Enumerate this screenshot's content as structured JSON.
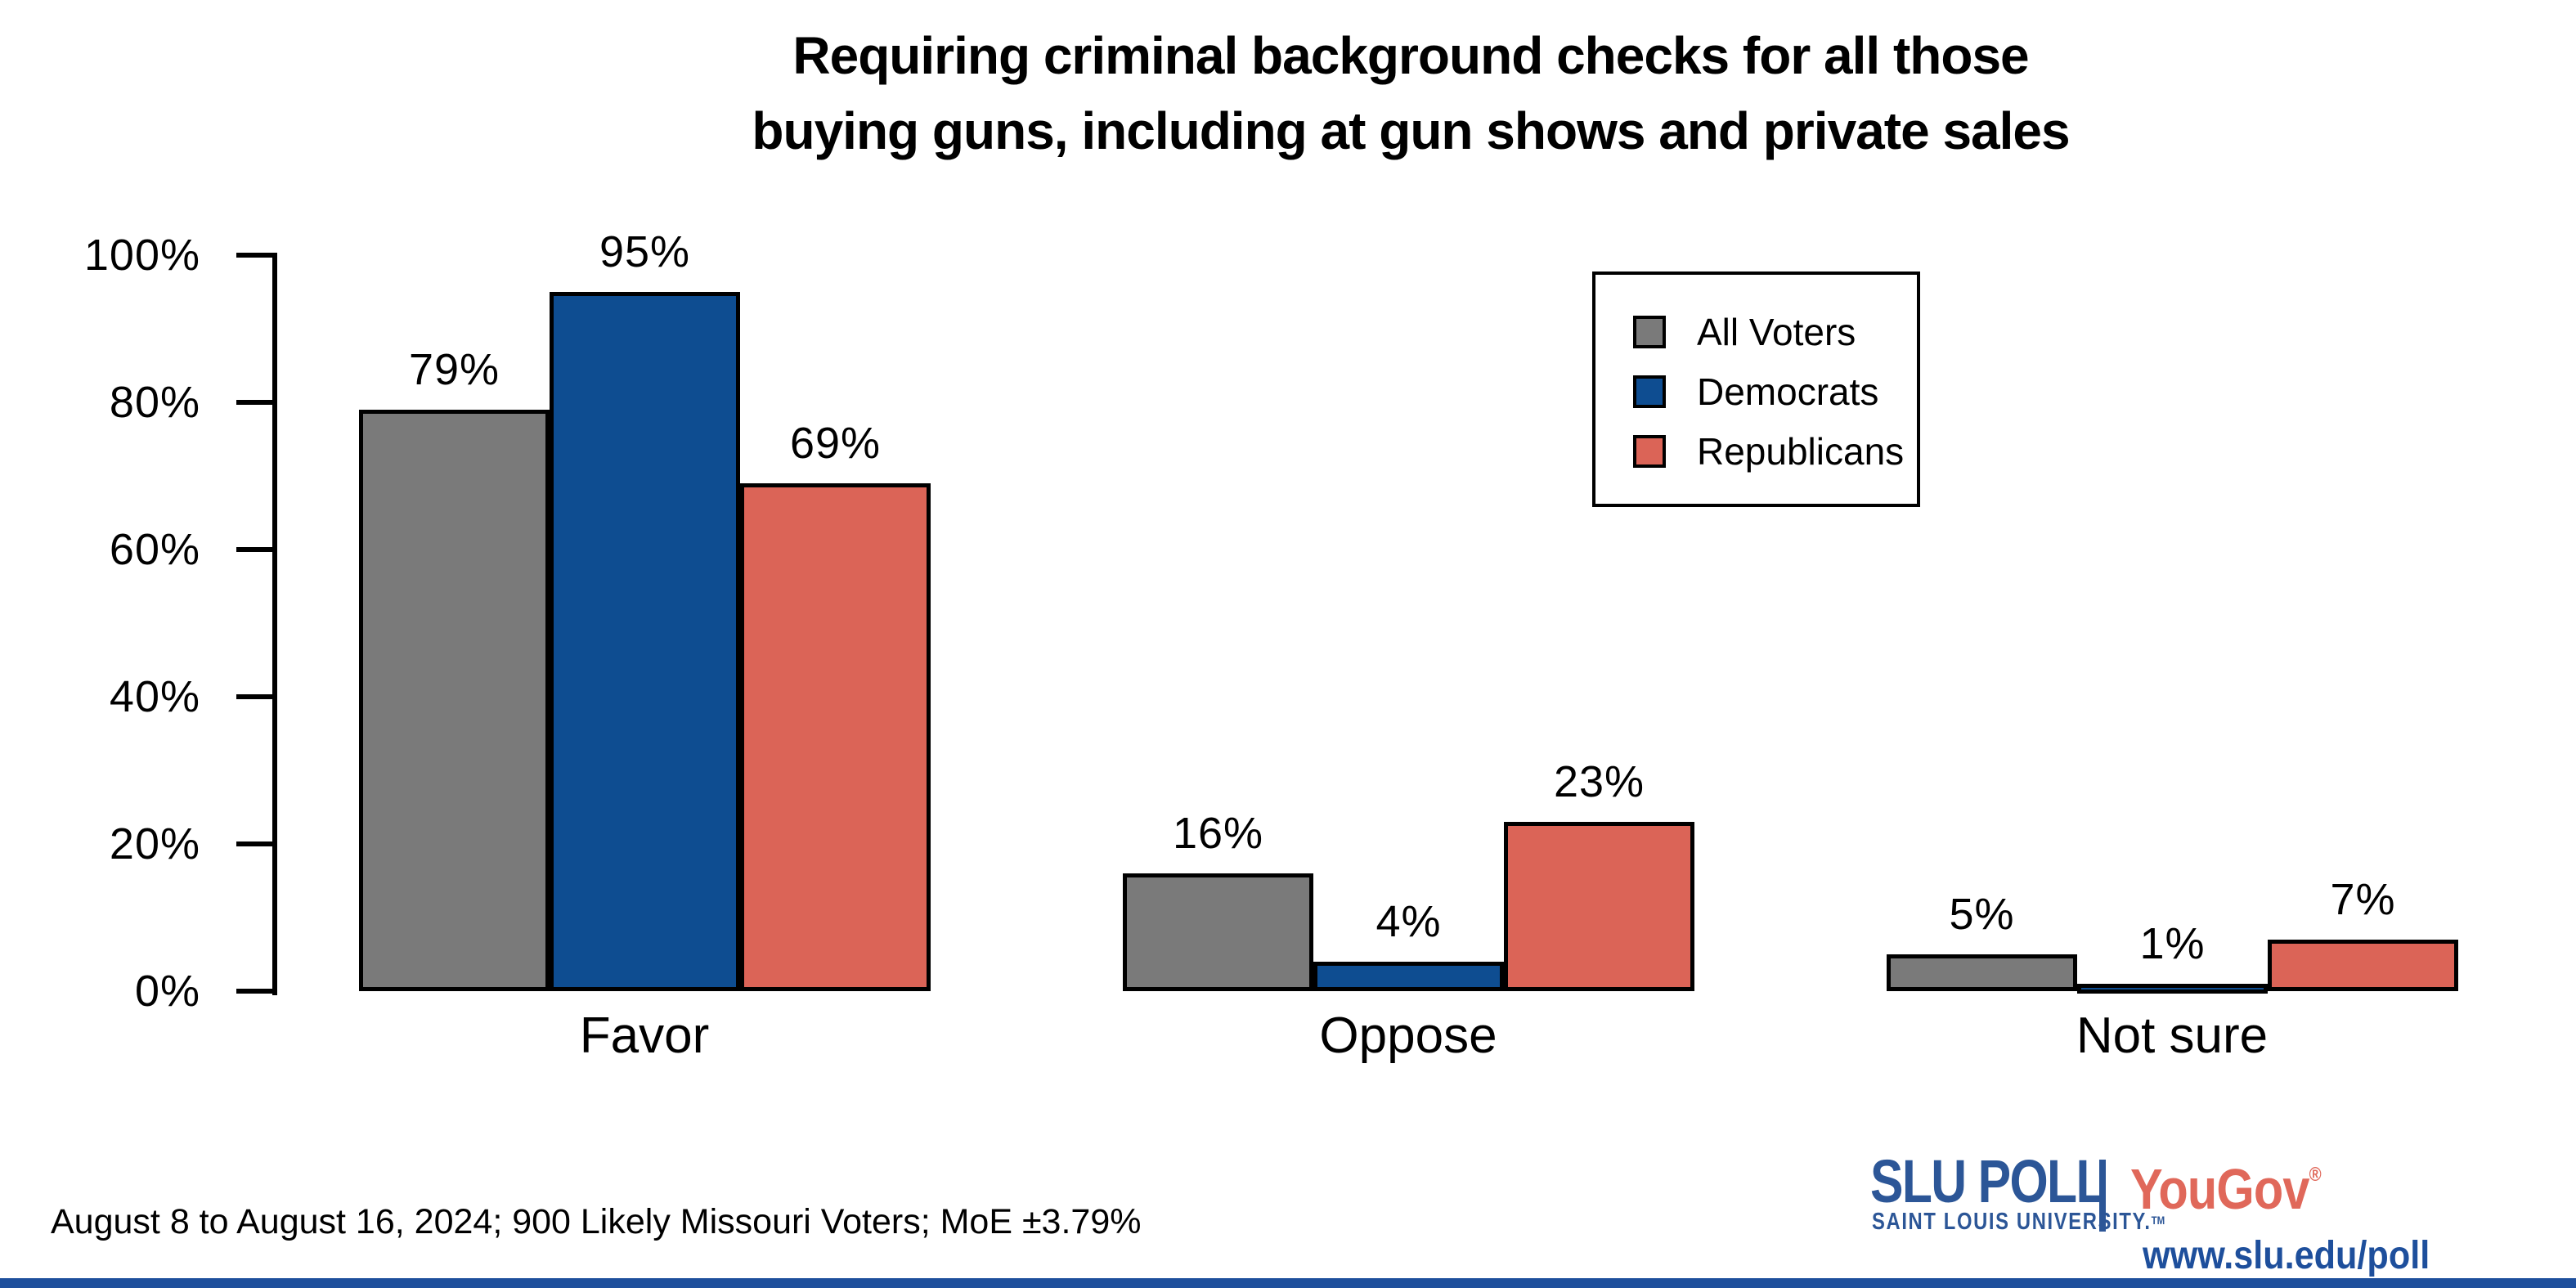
{
  "title": {
    "line1": "Requiring criminal background checks for all those",
    "line2": "buying guns, including at gun shows and private sales"
  },
  "chart_data": {
    "type": "bar",
    "categories": [
      "Favor",
      "Oppose",
      "Not sure"
    ],
    "series": [
      {
        "name": "All Voters",
        "color": "#7a7a7a",
        "values": [
          79,
          16,
          5
        ]
      },
      {
        "name": "Democrats",
        "color": "#0e4d91",
        "values": [
          95,
          4,
          1
        ]
      },
      {
        "name": "Republicans",
        "color": "#db6457",
        "values": [
          69,
          23,
          7
        ]
      }
    ],
    "yticks": [
      {
        "value": 0,
        "label": "0%"
      },
      {
        "value": 20,
        "label": "20%"
      },
      {
        "value": 40,
        "label": "40%"
      },
      {
        "value": 60,
        "label": "60%"
      },
      {
        "value": 80,
        "label": "80%"
      },
      {
        "value": 100,
        "label": "100%"
      }
    ],
    "ylim": [
      0,
      100
    ],
    "value_suffix": "%",
    "xlabel": "",
    "ylabel": "",
    "grid": false,
    "legend_position": "top-right",
    "bar_outline_color": "#000000"
  },
  "footnote": "August 8 to August 16, 2024; 900 Likely Missouri Voters; MoE ±3.79%",
  "branding": {
    "slu_poll": "SLU POLL",
    "slu_sub": "SAINT LOUIS UNIVERSITY.",
    "slu_tm": "TM",
    "yougov": "YouGov",
    "yougov_reg": "®",
    "url": "www.slu.edu/poll",
    "slu_blue": "#2c5697",
    "yougov_red": "#e0685a",
    "strip_blue": "#1e4f9c"
  }
}
